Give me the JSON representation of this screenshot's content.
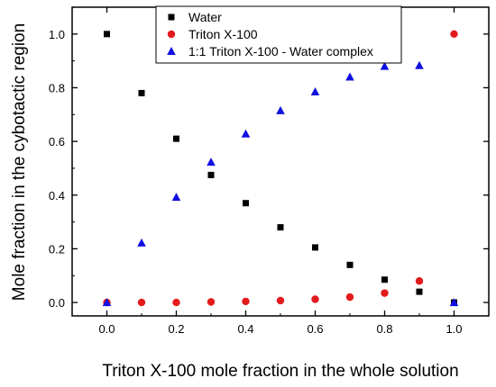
{
  "chart_data": {
    "type": "scatter",
    "title": "",
    "xlabel": "Triton X-100 mole fraction in the whole solution",
    "ylabel": "Mole fraction in the cybotactic region",
    "xlim": [
      -0.1,
      1.1
    ],
    "ylim": [
      -0.05,
      1.1
    ],
    "xticks": [
      0.0,
      0.2,
      0.4,
      0.6,
      0.8,
      1.0
    ],
    "xtick_labels": [
      "0.0",
      "0.2",
      "0.4",
      "0.6",
      "0.8",
      "1.0"
    ],
    "yticks": [
      0.0,
      0.2,
      0.4,
      0.6,
      0.8,
      1.0
    ],
    "ytick_labels": [
      "0.0",
      "0.2",
      "0.4",
      "0.6",
      "0.8",
      "1.0"
    ],
    "grid": false,
    "legend_position": "top-right",
    "x": [
      0.0,
      0.1,
      0.2,
      0.3,
      0.4,
      0.5,
      0.6,
      0.7,
      0.8,
      0.9,
      1.0
    ],
    "series": [
      {
        "name": "Water",
        "marker": "square",
        "color": "#000000",
        "values": [
          1.0,
          0.78,
          0.61,
          0.475,
          0.37,
          0.28,
          0.205,
          0.14,
          0.085,
          0.04,
          0.0
        ]
      },
      {
        "name": "Triton X-100",
        "marker": "circle",
        "color": "#e41a1c",
        "values": [
          0.0,
          0.0,
          0.0,
          0.002,
          0.004,
          0.007,
          0.012,
          0.02,
          0.035,
          0.08,
          1.0
        ]
      },
      {
        "name": "1:1 Triton X-100 - Water complex",
        "marker": "triangle",
        "color": "#1010e0",
        "values": [
          0.0,
          0.222,
          0.392,
          0.523,
          0.628,
          0.715,
          0.785,
          0.84,
          0.88,
          0.883,
          0.0
        ]
      }
    ]
  }
}
